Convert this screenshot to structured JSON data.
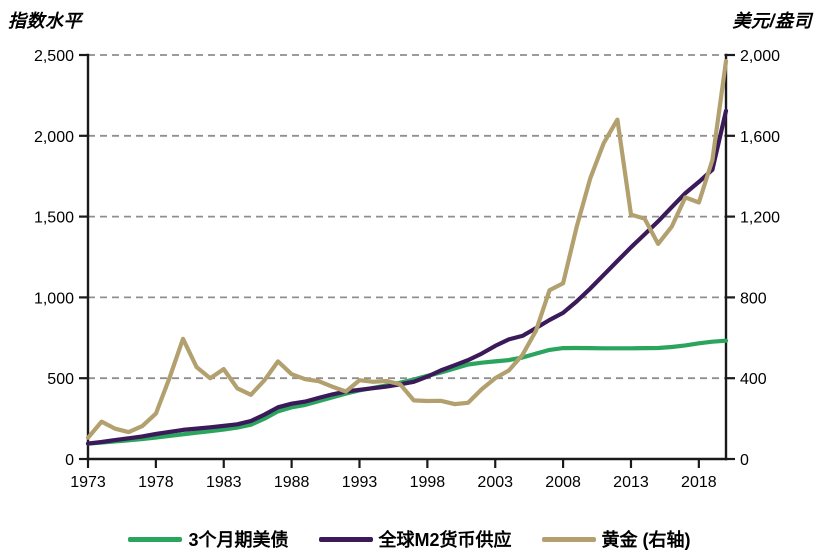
{
  "chart_data": {
    "type": "line",
    "left_axis_title": "指数水平",
    "right_axis_title": "美元/盎司",
    "x": [
      1973,
      1974,
      1975,
      1976,
      1977,
      1978,
      1979,
      1980,
      1981,
      1982,
      1983,
      1984,
      1985,
      1986,
      1987,
      1988,
      1989,
      1990,
      1991,
      1992,
      1993,
      1994,
      1995,
      1996,
      1997,
      1998,
      1999,
      2000,
      2001,
      2002,
      2003,
      2004,
      2005,
      2006,
      2007,
      2008,
      2009,
      2010,
      2011,
      2012,
      2013,
      2014,
      2015,
      2016,
      2017,
      2018,
      2019,
      2020
    ],
    "x_tick_values": [
      1973,
      1978,
      1983,
      1988,
      1993,
      1998,
      2003,
      2008,
      2013,
      2018
    ],
    "x_tick_labels": [
      "1973",
      "1978",
      "1983",
      "1988",
      "1993",
      "1998",
      "2003",
      "2008",
      "2013",
      "2018"
    ],
    "left_ylim": [
      0,
      2500
    ],
    "right_ylim": [
      0,
      2000
    ],
    "left_tick_values": [
      0,
      500,
      1000,
      1500,
      2000,
      2500
    ],
    "left_tick_labels": [
      "0",
      "500",
      "1,000",
      "1,500",
      "2,000",
      "2,500"
    ],
    "right_tick_values": [
      0,
      400,
      800,
      1200,
      1600,
      2000
    ],
    "right_tick_labels": [
      "0",
      "400",
      "800",
      "1,200",
      "1,600",
      "2,000"
    ],
    "grid": "horizontal-dashed",
    "grid_color": "#8F8F8F",
    "axis_color": "#1a1a1a",
    "legend_position": "bottom",
    "series": [
      {
        "name": "3个月期美债",
        "axis": "left",
        "color": "#2BA45E",
        "values": [
          95,
          102,
          109,
          116,
          124,
          133,
          143,
          153,
          163,
          172,
          182,
          194,
          212,
          250,
          295,
          320,
          335,
          358,
          382,
          405,
          425,
          440,
          455,
          472,
          492,
          515,
          535,
          560,
          585,
          596,
          604,
          612,
          628,
          652,
          675,
          686,
          687,
          686,
          685,
          685,
          685,
          686,
          687,
          693,
          703,
          716,
          726,
          732
        ]
      },
      {
        "name": "全球M2货币供应",
        "axis": "left",
        "color": "#3A1A58",
        "values": [
          95,
          105,
          117,
          128,
          140,
          155,
          168,
          180,
          188,
          196,
          205,
          215,
          235,
          275,
          320,
          342,
          355,
          378,
          400,
          418,
          428,
          438,
          448,
          462,
          478,
          510,
          548,
          580,
          612,
          652,
          700,
          740,
          762,
          810,
          860,
          905,
          975,
          1055,
          1140,
          1225,
          1310,
          1390,
          1470,
          1558,
          1645,
          1715,
          1790,
          2155
        ]
      },
      {
        "name": "黄金 (右轴)",
        "axis": "right",
        "color": "#B2A06F",
        "values": [
          105,
          185,
          150,
          133,
          163,
          225,
          400,
          595,
          455,
          400,
          445,
          350,
          318,
          390,
          483,
          420,
          395,
          385,
          358,
          334,
          390,
          382,
          386,
          370,
          290,
          287,
          288,
          272,
          278,
          345,
          400,
          438,
          515,
          635,
          835,
          870,
          1150,
          1390,
          1565,
          1680,
          1210,
          1190,
          1065,
          1150,
          1295,
          1270,
          1480,
          1970
        ]
      }
    ]
  }
}
